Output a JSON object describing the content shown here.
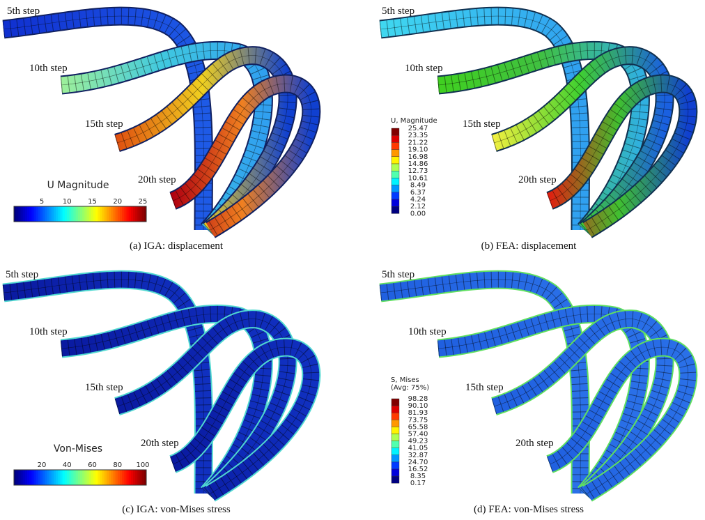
{
  "panels": [
    {
      "caption": "(a)  IGA: displacement",
      "steps": [
        "5th step",
        "10th step",
        "15th step",
        "20th step"
      ],
      "legend": {
        "title": [
          "U Magnitude"
        ],
        "ticks": [
          "5",
          "10",
          "15",
          "20",
          "25"
        ]
      }
    },
    {
      "caption": "(b)  FEA: displacement",
      "steps": [
        "5th step",
        "10th step",
        "15th step",
        "20th step"
      ],
      "legend": {
        "title": [
          "U, Magnitude"
        ],
        "ticks": [
          "25.47",
          "23.35",
          "21.22",
          "19.10",
          "16.98",
          "14.86",
          "12.73",
          "10.61",
          "8.49",
          "6.37",
          "4.24",
          "2.12",
          "0.00"
        ]
      }
    },
    {
      "caption": "(c)  IGA: von-Mises stress",
      "steps": [
        "5th step",
        "10th step",
        "15th step",
        "20th step"
      ],
      "legend": {
        "title": [
          "Von-Mises"
        ],
        "ticks": [
          "20",
          "40",
          "60",
          "80",
          "100"
        ]
      }
    },
    {
      "caption": "(d)  FEA: von-Mises stress",
      "steps": [
        "5th step",
        "10th step",
        "15th step",
        "20th step"
      ],
      "legend": {
        "title": [
          "S, Mises",
          "(Avg: 75%)"
        ],
        "ticks": [
          "98.28",
          "90.10",
          "81.93",
          "73.75",
          "65.58",
          "57.40",
          "49.23",
          "41.05",
          "32.87",
          "24.70",
          "16.52",
          "8.35",
          "0.17"
        ]
      }
    }
  ]
}
